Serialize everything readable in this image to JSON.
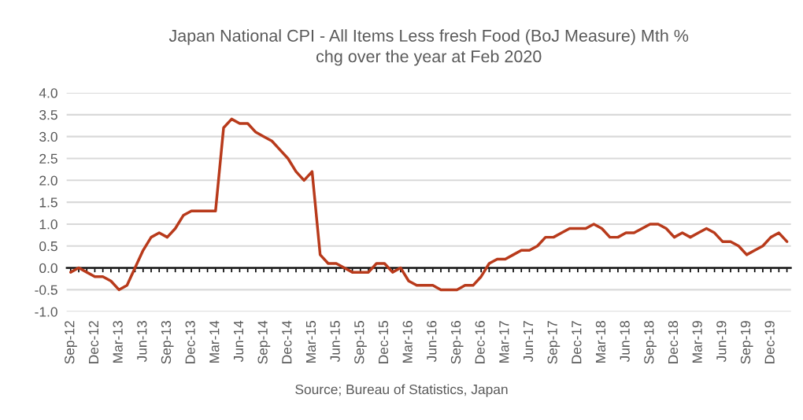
{
  "chart_data": {
    "type": "line",
    "title": "Japan National CPI - All Items Less fresh Food (BoJ Measure) Mth %\nchg over the year at Feb 2020",
    "categories": [
      "Sep-12",
      null,
      null,
      "Dec-12",
      null,
      null,
      "Mar-13",
      null,
      null,
      "Jun-13",
      null,
      null,
      "Sep-13",
      null,
      null,
      "Dec-13",
      null,
      null,
      "Mar-14",
      null,
      null,
      "Jun-14",
      null,
      null,
      "Sep-14",
      null,
      null,
      "Dec-14",
      null,
      null,
      "Mar-15",
      null,
      null,
      "Jun-15",
      null,
      null,
      "Sep-15",
      null,
      null,
      "Dec-15",
      null,
      null,
      "Mar-16",
      null,
      null,
      "Jun-16",
      null,
      null,
      "Sep-16",
      null,
      null,
      "Dec-16",
      null,
      null,
      "Mar-17",
      null,
      null,
      "Jun-17",
      null,
      null,
      "Sep-17",
      null,
      null,
      "Dec-17",
      null,
      null,
      "Mar-18",
      null,
      null,
      "Jun-18",
      null,
      null,
      "Sep-18",
      null,
      null,
      "Dec-18",
      null,
      null,
      "Mar-19",
      null,
      null,
      "Jun-19",
      null,
      null,
      "Sep-19",
      null,
      null,
      "Dec-19",
      null,
      null
    ],
    "series": [
      {
        "color": "#b83a1b",
        "values": [
          -0.1,
          0.0,
          -0.1,
          -0.2,
          -0.2,
          -0.3,
          -0.5,
          -0.4,
          0.0,
          0.4,
          0.7,
          0.8,
          0.7,
          0.9,
          1.2,
          1.3,
          1.3,
          1.3,
          1.3,
          3.2,
          3.4,
          3.3,
          3.3,
          3.1,
          3.0,
          2.9,
          2.7,
          2.5,
          2.2,
          2.0,
          2.2,
          0.3,
          0.1,
          0.1,
          0.0,
          -0.1,
          -0.1,
          -0.1,
          0.1,
          0.1,
          -0.1,
          0.0,
          -0.3,
          -0.4,
          -0.4,
          -0.4,
          -0.5,
          -0.5,
          -0.5,
          -0.4,
          -0.4,
          -0.2,
          0.1,
          0.2,
          0.2,
          0.3,
          0.4,
          0.4,
          0.5,
          0.7,
          0.7,
          0.8,
          0.9,
          0.9,
          0.9,
          1.0,
          0.9,
          0.7,
          0.7,
          0.8,
          0.8,
          0.9,
          1.0,
          1.0,
          0.9,
          0.7,
          0.8,
          0.7,
          0.8,
          0.9,
          0.8,
          0.6,
          0.6,
          0.5,
          0.3,
          0.4,
          0.5,
          0.7,
          0.8,
          0.6
        ]
      }
    ],
    "ylim": [
      -1.0,
      4.0
    ],
    "yticks": [
      {
        "value": -1.0,
        "label": "-1.0"
      },
      {
        "value": -0.5,
        "label": "-0.5"
      },
      {
        "value": 0,
        "label": "0.0"
      },
      {
        "value": 0.5,
        "label": "0.5"
      },
      {
        "value": 1.0,
        "label": "1.0"
      },
      {
        "value": 1.5,
        "label": "1.5"
      },
      {
        "value": 2.0,
        "label": "2.0"
      },
      {
        "value": 2.5,
        "label": "2.5"
      },
      {
        "value": 3.0,
        "label": "3.0"
      },
      {
        "value": 3.5,
        "label": "3.5"
      },
      {
        "value": 4.0,
        "label": "4.0"
      }
    ],
    "grid": "y",
    "marker": "none",
    "line_style": "solid",
    "annotations": [
      "Source; Bureau of Statistics, Japan"
    ]
  }
}
